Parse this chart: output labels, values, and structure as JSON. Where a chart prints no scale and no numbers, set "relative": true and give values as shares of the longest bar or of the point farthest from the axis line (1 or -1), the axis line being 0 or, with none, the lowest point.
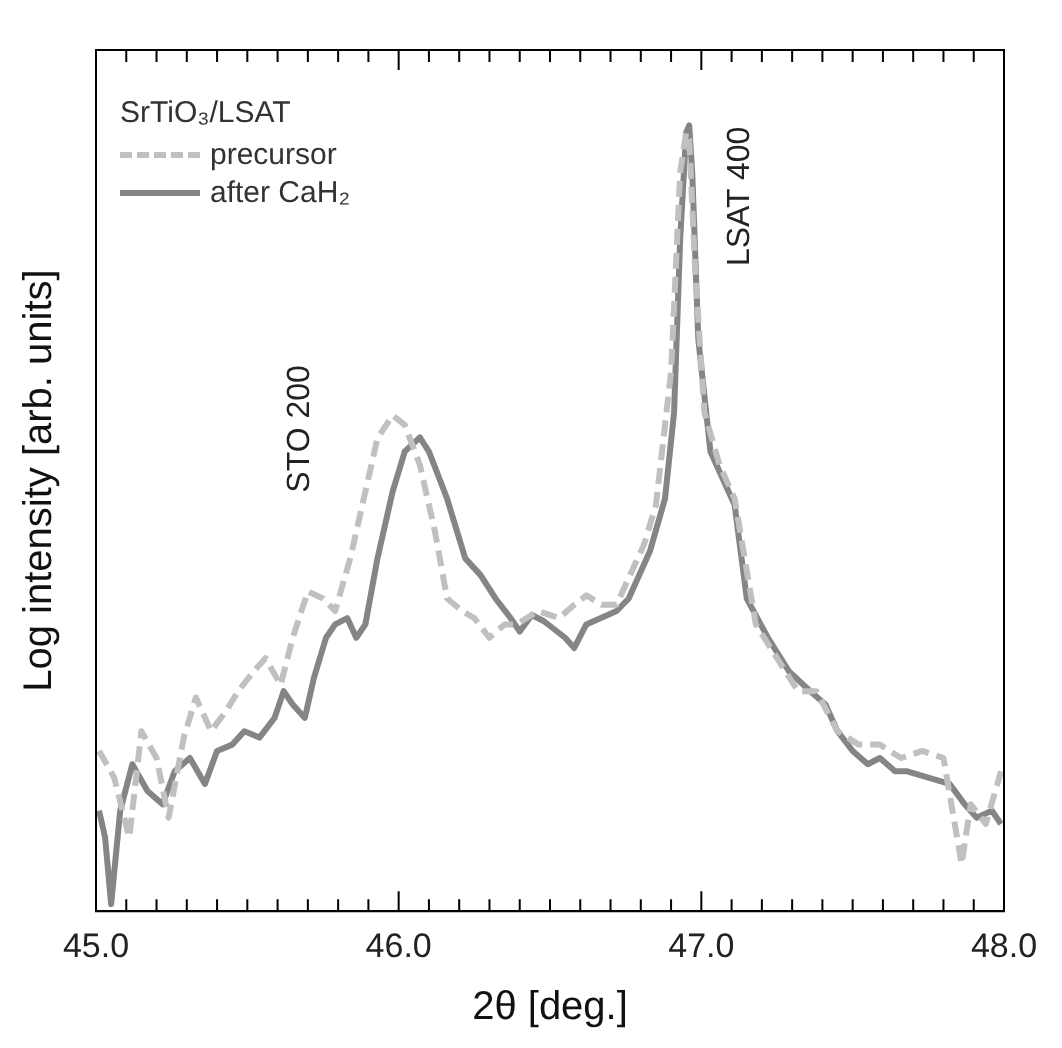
{
  "chart_data": {
    "type": "line",
    "xlabel": "2θ [deg.]",
    "ylabel": "Log intensity [arb. units]",
    "relative": true,
    "legend": "top left",
    "legend_title": "SrTiO₃/LSAT",
    "xlim": [
      45,
      48
    ],
    "xticks": [
      {
        "value": 45,
        "label": "45.0"
      },
      {
        "value": 45.1,
        "label": null
      },
      {
        "value": 45.2,
        "label": null
      },
      {
        "value": 45.3,
        "label": null
      },
      {
        "value": 45.4,
        "label": null
      },
      {
        "value": 45.5,
        "label": null
      },
      {
        "value": 45.6,
        "label": null
      },
      {
        "value": 45.7,
        "label": null
      },
      {
        "value": 45.8,
        "label": null
      },
      {
        "value": 45.9,
        "label": null
      },
      {
        "value": 46,
        "label": "46.0"
      },
      {
        "value": 46.1,
        "label": null
      },
      {
        "value": 46.2,
        "label": null
      },
      {
        "value": 46.3,
        "label": null
      },
      {
        "value": 46.4,
        "label": null
      },
      {
        "value": 46.5,
        "label": null
      },
      {
        "value": 46.6,
        "label": null
      },
      {
        "value": 46.7,
        "label": null
      },
      {
        "value": 46.8,
        "label": null
      },
      {
        "value": 46.9,
        "label": null
      },
      {
        "value": 47,
        "label": "47.0"
      },
      {
        "value": 47.1,
        "label": null
      },
      {
        "value": 47.2,
        "label": null
      },
      {
        "value": 47.3,
        "label": null
      },
      {
        "value": 47.4,
        "label": null
      },
      {
        "value": 47.5,
        "label": null
      },
      {
        "value": 47.6,
        "label": null
      },
      {
        "value": 47.7,
        "label": null
      },
      {
        "value": 47.8,
        "label": null
      },
      {
        "value": 47.9,
        "label": null
      },
      {
        "value": 48,
        "label": "48.0"
      }
    ],
    "series": [
      {
        "name": "precursor",
        "color": "#c0c0c0",
        "line_style": "dashed",
        "x": [
          45.01,
          45.06,
          45.11,
          45.15,
          45.2,
          45.24,
          45.29,
          45.33,
          45.38,
          45.43,
          45.47,
          45.52,
          45.56,
          45.61,
          45.65,
          45.7,
          45.75,
          45.79,
          45.84,
          45.89,
          45.93,
          45.98,
          46.02,
          46.07,
          46.12,
          46.16,
          46.21,
          46.25,
          46.3,
          46.35,
          46.39,
          46.46,
          46.53,
          46.58,
          46.62,
          46.67,
          46.72,
          46.76,
          46.81,
          46.85,
          46.9,
          46.93,
          46.95,
          46.96,
          46.98,
          47.01,
          47.06,
          47.11,
          47.18,
          47.25,
          47.32,
          47.38,
          47.45,
          47.52,
          47.59,
          47.66,
          47.73,
          47.8,
          47.86,
          47.89,
          47.94,
          47.99
        ],
        "values": [
          0.204,
          0.17,
          0.094,
          0.229,
          0.195,
          0.119,
          0.221,
          0.272,
          0.229,
          0.255,
          0.28,
          0.305,
          0.322,
          0.288,
          0.348,
          0.407,
          0.398,
          0.382,
          0.449,
          0.534,
          0.602,
          0.631,
          0.619,
          0.568,
          0.483,
          0.398,
          0.382,
          0.373,
          0.348,
          0.365,
          0.365,
          0.382,
          0.373,
          0.39,
          0.402,
          0.39,
          0.39,
          0.424,
          0.466,
          0.517,
          0.686,
          0.94,
          0.991,
          0.982,
          0.813,
          0.635,
          0.568,
          0.525,
          0.365,
          0.322,
          0.28,
          0.28,
          0.229,
          0.212,
          0.212,
          0.195,
          0.204,
          0.195,
          0.06,
          0.136,
          0.111,
          0.178
        ]
      },
      {
        "name": "after CaH₂",
        "color": "#858585",
        "line_style": "solid",
        "x": [
          45.01,
          45.03,
          45.05,
          45.08,
          45.12,
          45.17,
          45.22,
          45.26,
          45.31,
          45.36,
          45.4,
          45.45,
          45.49,
          45.54,
          45.59,
          45.62,
          45.65,
          45.69,
          45.72,
          45.76,
          45.79,
          45.83,
          45.86,
          45.89,
          45.93,
          45.98,
          46.02,
          46.07,
          46.1,
          46.16,
          46.22,
          46.27,
          46.32,
          46.37,
          46.4,
          46.44,
          46.48,
          46.55,
          46.58,
          46.62,
          46.72,
          46.76,
          46.83,
          46.88,
          46.91,
          46.93,
          46.95,
          46.96,
          46.97,
          46.99,
          47.03,
          47.07,
          47.11,
          47.15,
          47.22,
          47.29,
          47.36,
          47.41,
          47.45,
          47.5,
          47.55,
          47.59,
          47.64,
          47.68,
          47.75,
          47.82,
          47.87,
          47.91,
          47.96,
          47.99
        ],
        "values": [
          0.128,
          0.094,
          0.009,
          0.128,
          0.187,
          0.153,
          0.136,
          0.178,
          0.195,
          0.162,
          0.204,
          0.212,
          0.229,
          0.221,
          0.246,
          0.28,
          0.263,
          0.246,
          0.297,
          0.348,
          0.365,
          0.373,
          0.348,
          0.365,
          0.449,
          0.534,
          0.585,
          0.603,
          0.585,
          0.525,
          0.449,
          0.428,
          0.398,
          0.373,
          0.356,
          0.377,
          0.369,
          0.348,
          0.335,
          0.365,
          0.382,
          0.398,
          0.458,
          0.525,
          0.635,
          0.855,
          0.991,
          1,
          0.94,
          0.728,
          0.585,
          0.551,
          0.517,
          0.398,
          0.348,
          0.305,
          0.28,
          0.263,
          0.229,
          0.204,
          0.187,
          0.195,
          0.178,
          0.178,
          0.17,
          0.162,
          0.136,
          0.119,
          0.128,
          0.111
        ]
      }
    ],
    "annotations": [
      "STO 200",
      "LSAT 400"
    ]
  }
}
